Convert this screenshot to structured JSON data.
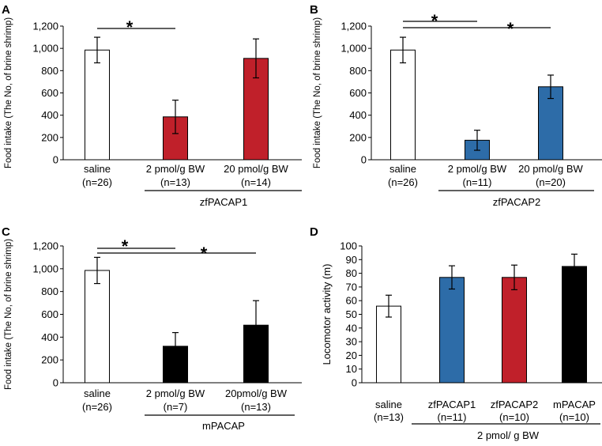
{
  "chart_data": [
    {
      "panel": "A",
      "type": "bar",
      "ylabel": "Food intake (The No, of brine shrimp)",
      "ylim": [
        0,
        1200
      ],
      "yticks": [
        "0",
        "200",
        "400",
        "600",
        "800",
        "1,000",
        "1,200"
      ],
      "ytick_values": [
        0,
        200,
        400,
        600,
        800,
        1000,
        1200
      ],
      "categories": [
        {
          "label": "saline",
          "n": "(n=26)"
        },
        {
          "label": "2 pmol/g BW",
          "n": "(n=13)"
        },
        {
          "label": "20 pmol/g BW",
          "n": "(n=14)"
        }
      ],
      "values": [
        985,
        385,
        910
      ],
      "errors": [
        115,
        150,
        175
      ],
      "colors": [
        "#ffffff",
        "#c0202a",
        "#c0202a"
      ],
      "group_label": "zfPACAP1",
      "significance": [
        {
          "from": 0,
          "to": 1,
          "mark": "*"
        }
      ]
    },
    {
      "panel": "B",
      "type": "bar",
      "ylabel": "Food intake (The No, of brine shrimp)",
      "ylim": [
        0,
        1200
      ],
      "yticks": [
        "0",
        "200",
        "400",
        "600",
        "800",
        "1,000",
        "1,200"
      ],
      "ytick_values": [
        0,
        200,
        400,
        600,
        800,
        1000,
        1200
      ],
      "categories": [
        {
          "label": "saline",
          "n": "(n=26)"
        },
        {
          "label": "2 pmol/g BW",
          "n": "(n=11)"
        },
        {
          "label": "20 pmol/g BW",
          "n": "(n=20)"
        }
      ],
      "values": [
        985,
        175,
        655
      ],
      "errors": [
        115,
        90,
        105
      ],
      "colors": [
        "#ffffff",
        "#2d6ca8",
        "#2d6ca8"
      ],
      "group_label": "zfPACAP2",
      "significance": [
        {
          "from": 0,
          "to": 1,
          "mark": "*"
        },
        {
          "from": 0,
          "to": 2,
          "mark": "*"
        }
      ]
    },
    {
      "panel": "C",
      "type": "bar",
      "ylabel": "Food intake (The No, of brine shrimp)",
      "ylim": [
        0,
        1200
      ],
      "yticks": [
        "0",
        "200",
        "400",
        "600",
        "800",
        "1,000",
        "1,200"
      ],
      "ytick_values": [
        0,
        200,
        400,
        600,
        800,
        1000,
        1200
      ],
      "categories": [
        {
          "label": "saline",
          "n": "(n=26)"
        },
        {
          "label": "2 pmol/g BW",
          "n": "(n=7)"
        },
        {
          "label": "20pmol/g BW",
          "n": "(n=13)"
        }
      ],
      "values": [
        985,
        320,
        505
      ],
      "errors": [
        115,
        120,
        215
      ],
      "colors": [
        "#ffffff",
        "#000000",
        "#000000"
      ],
      "group_label": "mPACAP",
      "significance": [
        {
          "from": 0,
          "to": 1,
          "mark": "*"
        },
        {
          "from": 0,
          "to": 2,
          "mark": "*"
        }
      ]
    },
    {
      "panel": "D",
      "type": "bar",
      "ylabel": "Locomotor activity (m)",
      "ylim": [
        0,
        100
      ],
      "yticks": [
        "0",
        "10",
        "20",
        "30",
        "40",
        "50",
        "60",
        "70",
        "80",
        "90",
        "100"
      ],
      "ytick_values": [
        0,
        10,
        20,
        30,
        40,
        50,
        60,
        70,
        80,
        90,
        100
      ],
      "categories": [
        {
          "label": "saline",
          "n": "(n=13)"
        },
        {
          "label": "zfPACAP1",
          "n": "(n=11)"
        },
        {
          "label": "zfPACAP2",
          "n": "(n=10)"
        },
        {
          "label": "mPACAP",
          "n": "(n=10)"
        }
      ],
      "values": [
        56,
        77,
        77,
        85
      ],
      "errors": [
        8,
        8.5,
        9,
        9
      ],
      "colors": [
        "#ffffff",
        "#2d6ca8",
        "#c0202a",
        "#000000"
      ],
      "group_label": "2 pmol/ g BW",
      "significance": []
    }
  ]
}
